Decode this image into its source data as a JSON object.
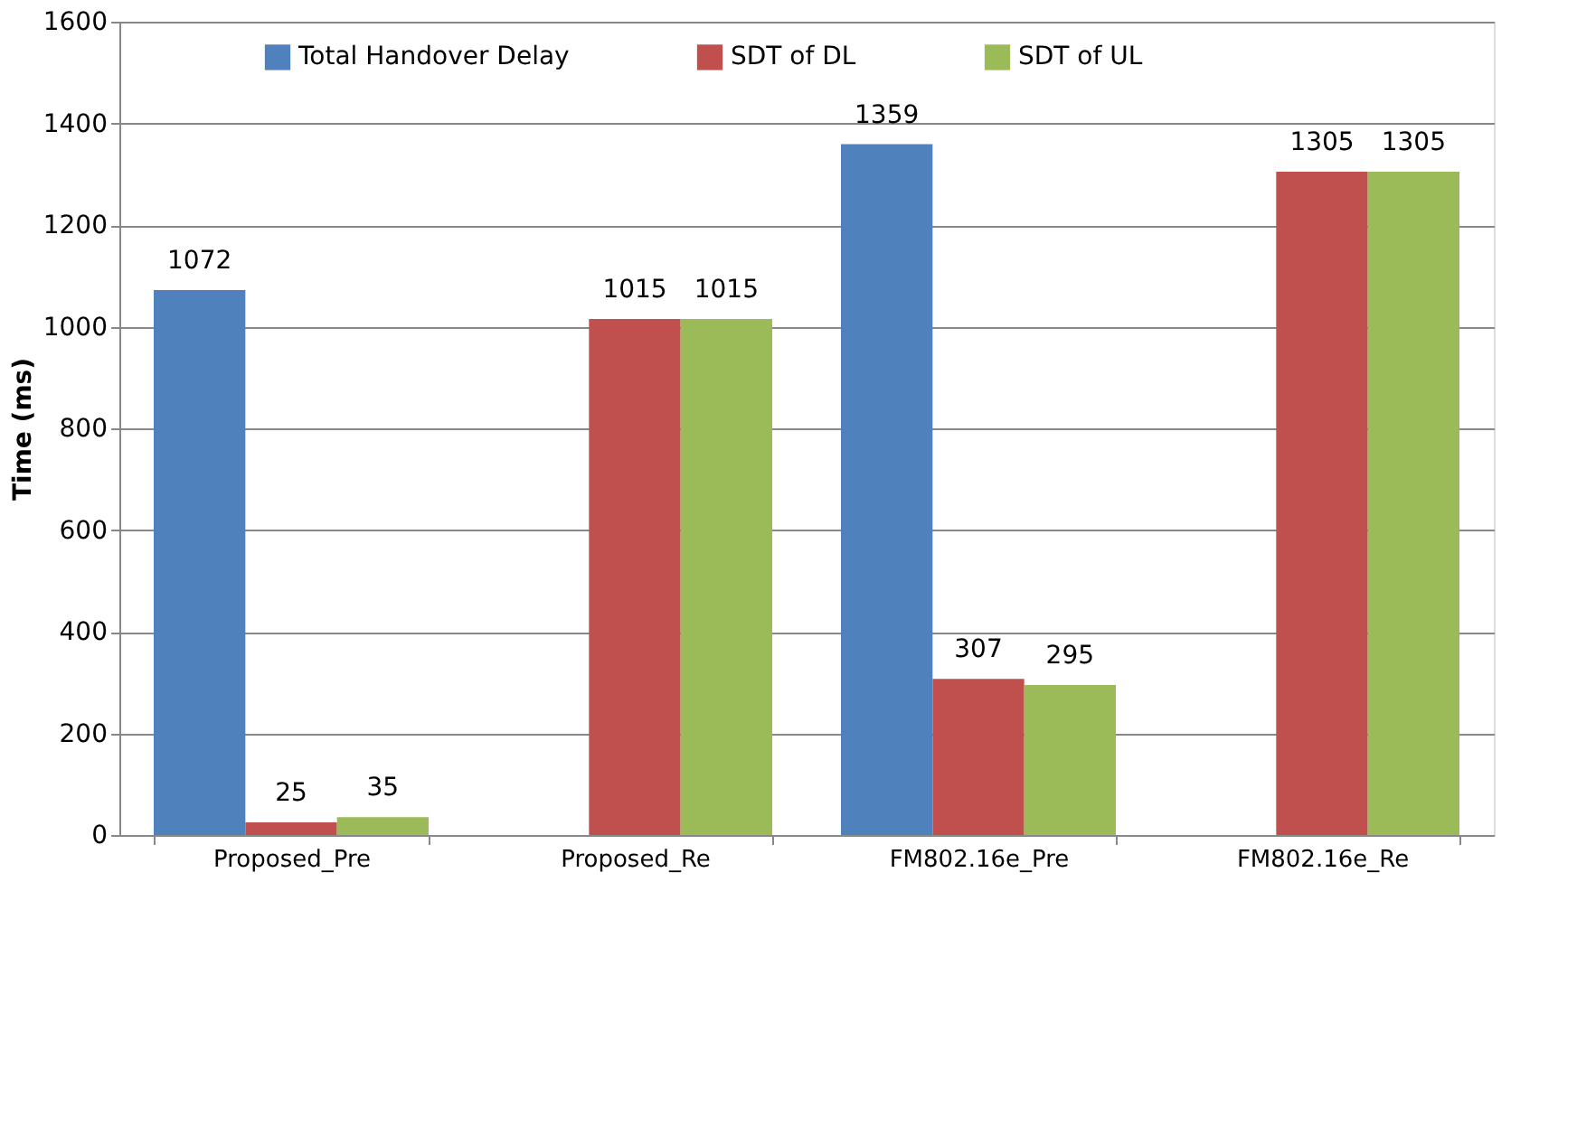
{
  "chart_data": {
    "type": "bar",
    "ylabel": "Time (ms)",
    "categories": [
      "Proposed_Pre",
      "Proposed_Re",
      "FM802.16e_Pre",
      "FM802.16e_Re"
    ],
    "series": [
      {
        "name": "Total Handover Delay",
        "color": "#4f81bd",
        "values": [
          1072,
          null,
          1359,
          null
        ]
      },
      {
        "name": "SDT of DL",
        "color": "#c0504d",
        "values": [
          25,
          1015,
          307,
          1305
        ]
      },
      {
        "name": "SDT of UL",
        "color": "#9bbb59",
        "values": [
          35,
          1015,
          295,
          1305
        ]
      }
    ],
    "ylim": [
      0,
      1600
    ],
    "yticks": [
      0,
      200,
      400,
      600,
      800,
      1000,
      1200,
      1400,
      1600
    ],
    "grid": "y",
    "legend": "top",
    "data_labels": true
  }
}
